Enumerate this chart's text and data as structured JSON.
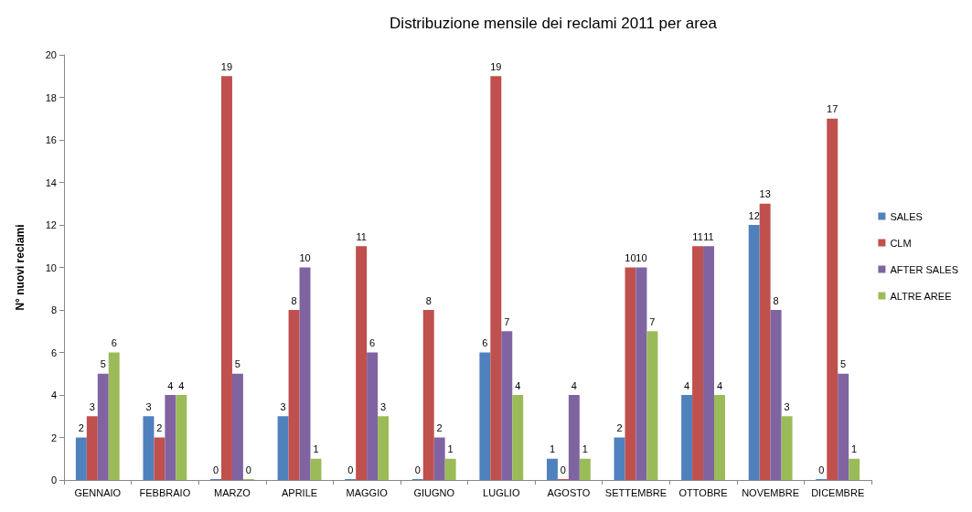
{
  "chart_data": {
    "type": "bar",
    "title": "Distribuzione mensile dei reclami 2011 per area",
    "ylabel": "N° nuovi reclami",
    "categories": [
      "GENNAIO",
      "FEBBRAIO",
      "MARZO",
      "APRILE",
      "MAGGIO",
      "GIUGNO",
      "LUGLIO",
      "AGOSTO",
      "SETTEMBRE",
      "OTTOBRE",
      "NOVEMBRE",
      "DICEMBRE"
    ],
    "series": [
      {
        "name": "SALES",
        "color": "#4f81bd",
        "values": [
          2,
          3,
          0,
          3,
          0,
          0,
          6,
          1,
          2,
          4,
          12,
          0
        ]
      },
      {
        "name": "CLM",
        "color": "#c0504d",
        "values": [
          3,
          2,
          19,
          8,
          11,
          8,
          19,
          0,
          10,
          11,
          13,
          17
        ]
      },
      {
        "name": "AFTER SALES",
        "color": "#8064a2",
        "values": [
          5,
          4,
          5,
          10,
          6,
          2,
          7,
          4,
          10,
          11,
          8,
          5
        ]
      },
      {
        "name": "ALTRE AREE",
        "color": "#9bbb59",
        "values": [
          6,
          4,
          0,
          1,
          3,
          1,
          4,
          1,
          7,
          4,
          3,
          1
        ]
      }
    ],
    "ylim": [
      0,
      20
    ],
    "yticks": [
      0,
      2,
      4,
      6,
      8,
      10,
      12,
      14,
      16,
      18,
      20
    ],
    "grid": false,
    "legend": "right",
    "data_labels": true
  }
}
